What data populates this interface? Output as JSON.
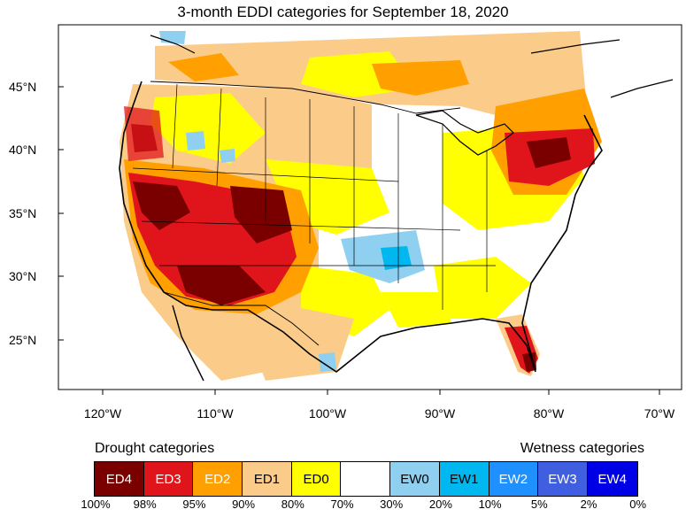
{
  "title": "3-month EDDI categories for September 18, 2020",
  "latitude_labels": [
    "45°N",
    "40°N",
    "35°N",
    "30°N",
    "25°N"
  ],
  "longitude_labels": [
    "120°W",
    "110°W",
    "100°W",
    "90°W",
    "80°W",
    "70°W"
  ],
  "legend": {
    "drought_title": "Drought categories",
    "wetness_title": "Wetness categories",
    "categories": [
      {
        "label": "ED4",
        "color": "#7a0000",
        "text_color": "#ffffff"
      },
      {
        "label": "ED3",
        "color": "#e0151b",
        "text_color": "#ffffff"
      },
      {
        "label": "ED2",
        "color": "#ffa000",
        "text_color": "#ffffff"
      },
      {
        "label": "ED1",
        "color": "#fbcb8a",
        "text_color": "#000000"
      },
      {
        "label": "ED0",
        "color": "#ffff00",
        "text_color": "#000000"
      },
      {
        "label": "",
        "color": "#ffffff",
        "text_color": "#000000"
      },
      {
        "label": "EW0",
        "color": "#8fd0f0",
        "text_color": "#000000"
      },
      {
        "label": "EW1",
        "color": "#00b8ef",
        "text_color": "#000000"
      },
      {
        "label": "EW2",
        "color": "#1e90ff",
        "text_color": "#ffffff"
      },
      {
        "label": "EW3",
        "color": "#3f5fe0",
        "text_color": "#ffffff"
      },
      {
        "label": "EW4",
        "color": "#0000e6",
        "text_color": "#ffffff"
      }
    ],
    "percentiles": [
      "100%",
      "98%",
      "95%",
      "90%",
      "80%",
      "70%",
      "30%",
      "20%",
      "10%",
      "5%",
      "2%",
      "0%"
    ]
  }
}
